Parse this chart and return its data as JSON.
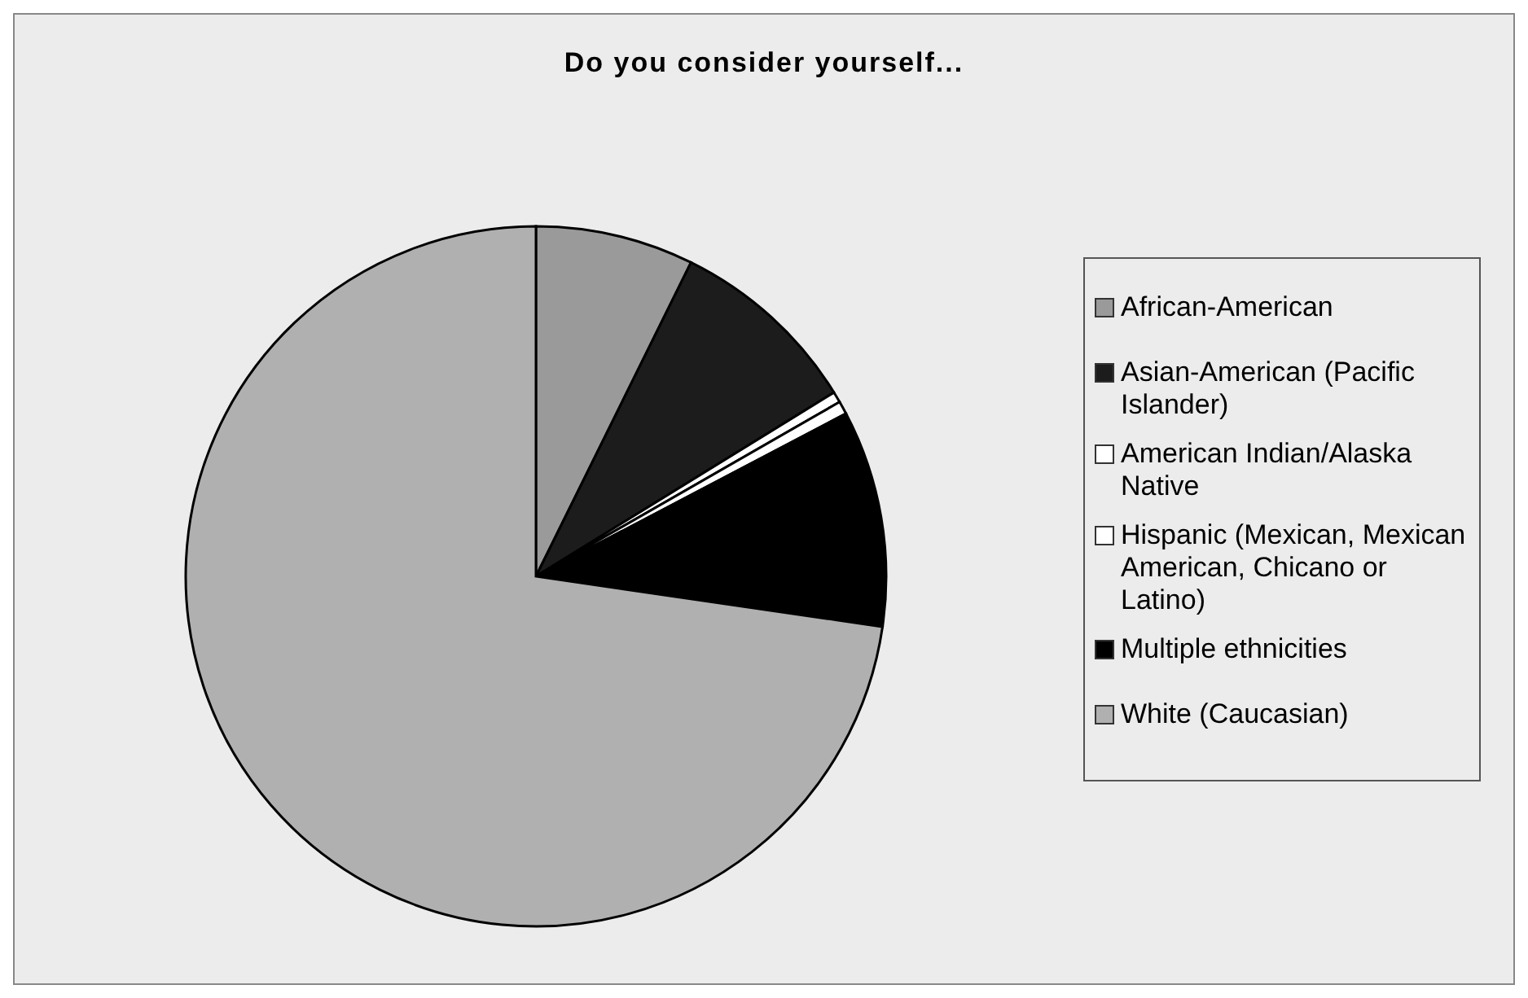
{
  "chart_data": {
    "type": "pie",
    "title": "Do you consider yourself...",
    "categories": [
      "African-American",
      "Asian-American (Pacific Islander)",
      "American Indian/Alaska Native",
      "Hispanic (Mexican, Mexican American, Chicano or Latino)",
      "Multiple ethnicities",
      "White (Caucasian)"
    ],
    "values": [
      7.3,
      8.9,
      0.5,
      0.6,
      10.0,
      72.7
    ],
    "colors": [
      "#9a9a9a",
      "#1c1c1c",
      "#ffffff",
      "#ffffff",
      "#000000",
      "#b0b0b0"
    ],
    "legend": "right"
  }
}
